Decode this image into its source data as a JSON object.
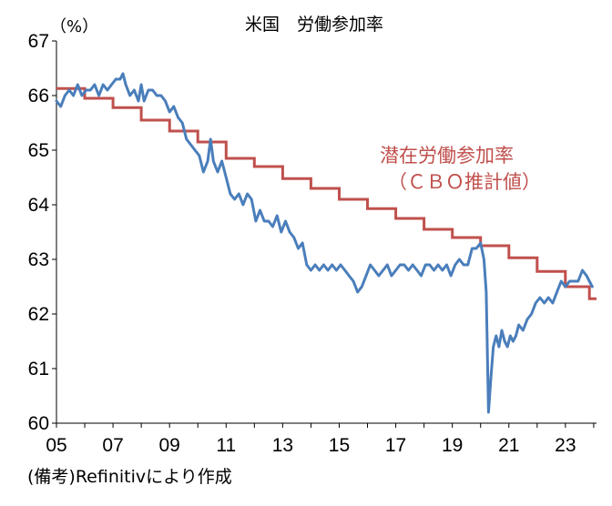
{
  "chart_data": {
    "type": "line",
    "title": "米国　労働参加率",
    "unit_label": "（%）",
    "annotation_line1": "潜在労働参加率",
    "annotation_line2": "（ＣＢＯ推計値）",
    "source": "(備考)Refinitivにより作成",
    "ylim": [
      60,
      67
    ],
    "y_ticks": [
      "60",
      "61",
      "62",
      "63",
      "64",
      "65",
      "66",
      "67"
    ],
    "xlim": [
      2005,
      2024.1
    ],
    "x_ticks": [
      "05",
      "07",
      "09",
      "11",
      "13",
      "15",
      "17",
      "19",
      "21",
      "23"
    ],
    "grid": false,
    "series": [
      {
        "color": "#4a7ebb",
        "x": [
          2005.0,
          2005.15,
          2005.3,
          2005.45,
          2005.6,
          2005.75,
          2005.9,
          2006.05,
          2006.2,
          2006.35,
          2006.5,
          2006.65,
          2006.8,
          2006.95,
          2007.1,
          2007.25,
          2007.35,
          2007.45,
          2007.6,
          2007.75,
          2007.9,
          2008.0,
          2008.1,
          2008.25,
          2008.4,
          2008.55,
          2008.7,
          2008.85,
          2009.0,
          2009.15,
          2009.3,
          2009.45,
          2009.6,
          2009.75,
          2009.9,
          2010.05,
          2010.2,
          2010.35,
          2010.45,
          2010.55,
          2010.7,
          2010.85,
          2011.0,
          2011.15,
          2011.3,
          2011.45,
          2011.6,
          2011.75,
          2011.9,
          2012.05,
          2012.2,
          2012.35,
          2012.5,
          2012.65,
          2012.8,
          2012.95,
          2013.1,
          2013.25,
          2013.4,
          2013.55,
          2013.7,
          2013.85,
          2014.0,
          2014.15,
          2014.3,
          2014.45,
          2014.6,
          2014.75,
          2014.9,
          2015.05,
          2015.2,
          2015.35,
          2015.5,
          2015.65,
          2015.8,
          2015.95,
          2016.1,
          2016.25,
          2016.4,
          2016.55,
          2016.7,
          2016.85,
          2017.0,
          2017.15,
          2017.3,
          2017.45,
          2017.6,
          2017.75,
          2017.9,
          2018.05,
          2018.2,
          2018.35,
          2018.5,
          2018.65,
          2018.8,
          2018.95,
          2019.1,
          2019.25,
          2019.4,
          2019.55,
          2019.7,
          2019.85,
          2020.0,
          2020.12,
          2020.2,
          2020.28,
          2020.36,
          2020.45,
          2020.55,
          2020.65,
          2020.75,
          2020.85,
          2020.95,
          2021.05,
          2021.15,
          2021.25,
          2021.35,
          2021.5,
          2021.65,
          2021.8,
          2021.95,
          2022.1,
          2022.25,
          2022.4,
          2022.55,
          2022.7,
          2022.85,
          2023.0,
          2023.15,
          2023.3,
          2023.45,
          2023.6,
          2023.75,
          2023.85,
          2023.95
        ],
        "values": [
          65.9,
          65.8,
          66.0,
          66.1,
          66.0,
          66.2,
          66.0,
          66.1,
          66.1,
          66.2,
          66.0,
          66.2,
          66.1,
          66.2,
          66.3,
          66.3,
          66.4,
          66.2,
          66.0,
          66.1,
          65.9,
          66.2,
          65.9,
          66.1,
          66.1,
          66.0,
          66.0,
          65.9,
          65.7,
          65.8,
          65.6,
          65.5,
          65.2,
          65.1,
          65.0,
          64.9,
          64.6,
          64.8,
          65.2,
          64.8,
          64.6,
          64.8,
          64.5,
          64.2,
          64.1,
          64.2,
          64.0,
          64.2,
          64.1,
          63.7,
          63.9,
          63.7,
          63.7,
          63.6,
          63.8,
          63.5,
          63.7,
          63.5,
          63.4,
          63.2,
          63.3,
          62.9,
          62.8,
          62.9,
          62.8,
          62.9,
          62.8,
          62.9,
          62.8,
          62.9,
          62.8,
          62.7,
          62.6,
          62.4,
          62.5,
          62.7,
          62.9,
          62.8,
          62.7,
          62.8,
          62.9,
          62.7,
          62.8,
          62.9,
          62.9,
          62.8,
          62.9,
          62.8,
          62.7,
          62.9,
          62.9,
          62.8,
          62.9,
          62.8,
          62.9,
          62.7,
          62.9,
          63.0,
          62.9,
          62.9,
          63.2,
          63.2,
          63.3,
          63.0,
          62.4,
          60.2,
          60.8,
          61.4,
          61.6,
          61.4,
          61.7,
          61.5,
          61.4,
          61.6,
          61.5,
          61.6,
          61.8,
          61.7,
          61.9,
          62.0,
          62.2,
          62.3,
          62.2,
          62.3,
          62.2,
          62.4,
          62.6,
          62.5,
          62.6,
          62.6,
          62.6,
          62.8,
          62.7,
          62.6,
          62.5
        ],
        "stroke_width": 3
      },
      {
        "color": "#c0504d",
        "step_x": [
          2005.0,
          2006.0,
          2007.0,
          2008.0,
          2009.0,
          2010.0,
          2011.0,
          2012.0,
          2013.0,
          2014.0,
          2015.0,
          2016.0,
          2017.0,
          2018.0,
          2019.0,
          2020.0,
          2021.0,
          2022.0,
          2023.0,
          2023.85,
          2024.1
        ],
        "step_values": [
          66.13,
          65.95,
          65.78,
          65.55,
          65.35,
          65.15,
          64.85,
          64.7,
          64.48,
          64.3,
          64.1,
          63.93,
          63.75,
          63.55,
          63.4,
          63.25,
          63.03,
          62.78,
          62.5,
          62.28
        ],
        "stroke_width": 3
      }
    ]
  }
}
